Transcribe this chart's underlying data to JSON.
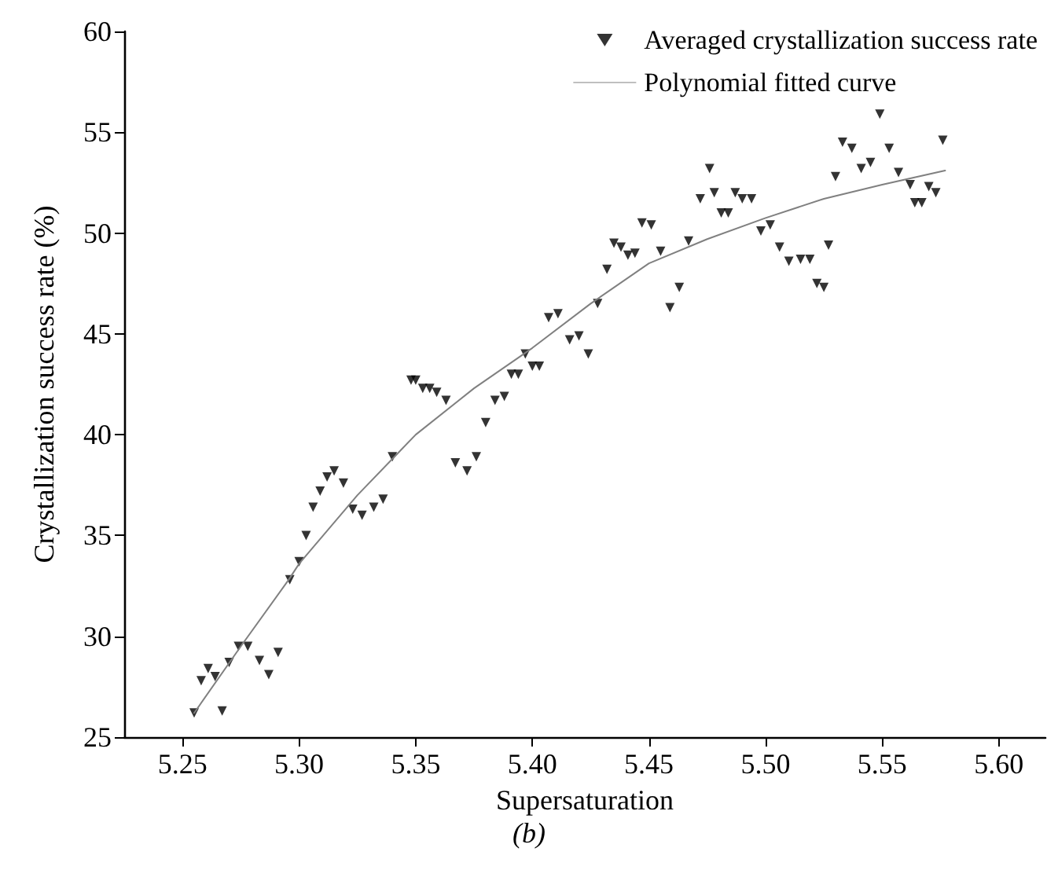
{
  "chart_data": {
    "type": "scatter",
    "xlabel": "Supersaturation",
    "ylabel": "Crystallization success rate (%)",
    "annotations": [
      "(b)"
    ],
    "xlim": [
      5.225,
      5.62
    ],
    "xticks": [
      5.25,
      {
        "value": 5.3,
        "label": "5.30"
      },
      5.35,
      {
        "value": 5.4,
        "label": "5.40"
      },
      5.45,
      {
        "value": 5.5,
        "label": "5.50"
      },
      5.55,
      {
        "value": 5.6,
        "label": "5.60"
      }
    ],
    "ylim": [
      25,
      60
    ],
    "yticks": [
      25,
      30,
      35,
      40,
      45,
      50,
      55,
      60
    ],
    "grid": false,
    "legend": "top right",
    "marker": "triangle",
    "series": [
      {
        "name": "Averaged crystallization success rate",
        "color": "#000000",
        "x": [
          5.255,
          5.258,
          5.261,
          5.264,
          5.267,
          5.27,
          5.274,
          5.278,
          5.283,
          5.287,
          5.291,
          5.296,
          5.3,
          5.303,
          5.306,
          5.309,
          5.312,
          5.315,
          5.319,
          5.323,
          5.327,
          5.332,
          5.336,
          5.34,
          5.348,
          5.35,
          5.353,
          5.356,
          5.359,
          5.363,
          5.367,
          5.372,
          5.376,
          5.38,
          5.384,
          5.388,
          5.391,
          5.394,
          5.397,
          5.4,
          5.403,
          5.407,
          5.411,
          5.416,
          5.42,
          5.424,
          5.428,
          5.432,
          5.435,
          5.438,
          5.441,
          5.444,
          5.447,
          5.451,
          5.455,
          5.459,
          5.463,
          5.467,
          5.472,
          5.476,
          5.478,
          5.481,
          5.484,
          5.487,
          5.49,
          5.494,
          5.498,
          5.502,
          5.506,
          5.51,
          5.515,
          5.519,
          5.522,
          5.525,
          5.527,
          5.53,
          5.533,
          5.537,
          5.541,
          5.545,
          5.549,
          5.553,
          5.557,
          5.562,
          5.564,
          5.567,
          5.57,
          5.573,
          5.576
        ],
        "values": [
          26.2,
          27.8,
          28.4,
          28.0,
          26.3,
          28.7,
          29.5,
          29.5,
          28.8,
          28.1,
          29.2,
          32.8,
          33.7,
          35.0,
          36.4,
          37.2,
          37.9,
          38.2,
          37.6,
          36.3,
          36.0,
          36.4,
          36.8,
          38.9,
          42.7,
          42.7,
          42.3,
          42.3,
          42.1,
          41.7,
          38.6,
          38.2,
          38.9,
          40.6,
          41.7,
          41.9,
          43.0,
          43.0,
          44.0,
          43.4,
          43.4,
          45.8,
          46.0,
          44.7,
          44.9,
          44.0,
          46.5,
          48.2,
          49.5,
          49.3,
          48.9,
          49.0,
          50.5,
          50.4,
          49.1,
          46.3,
          47.3,
          49.6,
          51.7,
          53.2,
          52.0,
          51.0,
          51.0,
          52.0,
          51.7,
          51.7,
          50.1,
          50.4,
          49.3,
          48.6,
          48.7,
          48.7,
          47.5,
          47.3,
          49.4,
          52.8,
          54.5,
          54.2,
          53.2,
          53.5,
          55.9,
          54.2,
          53.0,
          52.4,
          51.5,
          51.5,
          52.3,
          52.0,
          54.6
        ]
      },
      {
        "name": "Polynomial fitted curve",
        "type": "line",
        "color": "#808080",
        "marker": "none",
        "line_style": "solid",
        "x": [
          5.255,
          5.275,
          5.2955,
          5.3,
          5.325,
          5.35,
          5.375,
          5.4,
          5.425,
          5.45,
          5.475,
          5.5,
          5.525,
          5.55,
          5.577
        ],
        "values": [
          26.2,
          29.5,
          32.8,
          33.6,
          37.0,
          40.0,
          42.3,
          44.3,
          46.5,
          48.5,
          49.7,
          50.75,
          51.7,
          52.4,
          53.1
        ]
      }
    ]
  }
}
